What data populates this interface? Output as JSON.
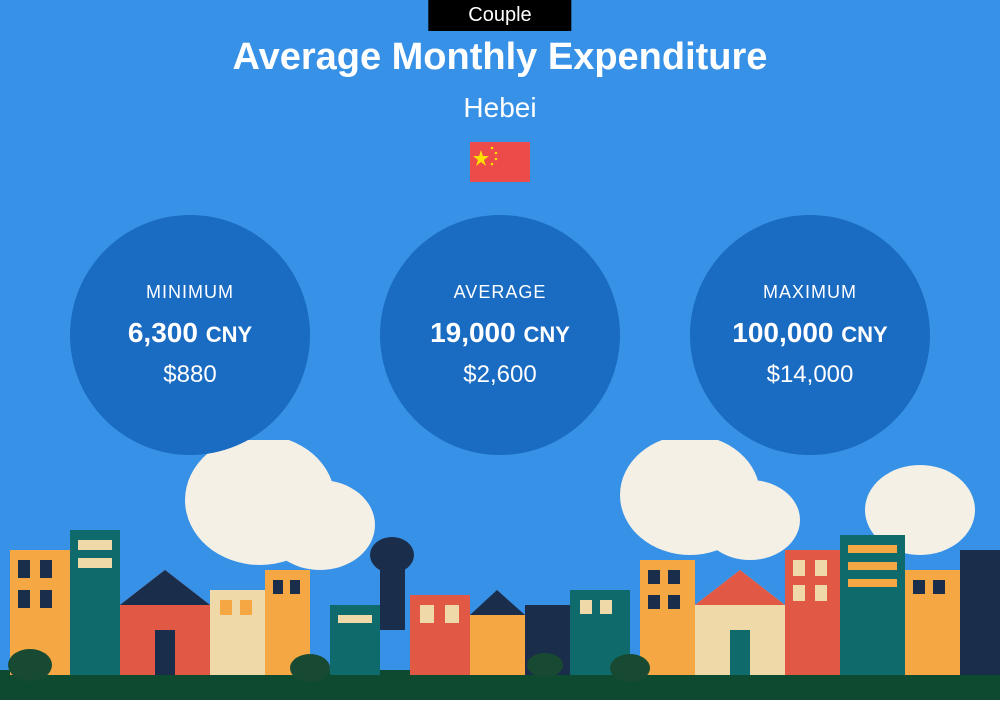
{
  "colors": {
    "background": "#3791e6",
    "tab_bg": "#000000",
    "circle_bg": "#1a6bc2",
    "flag_bg": "#ed4a4a",
    "flag_star": "#ffde00",
    "ground": "#0e4a2f",
    "cloud": "#f4f0e6",
    "orange": "#f4a742",
    "red": "#e15844",
    "teal": "#0f6b6b",
    "navy": "#1a2d4a",
    "cream": "#f0d9a8",
    "dkgreen": "#184a33"
  },
  "tab": {
    "label": "Couple"
  },
  "header": {
    "title": "Average Monthly Expenditure",
    "subtitle": "Hebei"
  },
  "stats": [
    {
      "label": "MINIMUM",
      "value": "6,300",
      "currency": "CNY",
      "usd": "$880"
    },
    {
      "label": "AVERAGE",
      "value": "19,000",
      "currency": "CNY",
      "usd": "$2,600"
    },
    {
      "label": "MAXIMUM",
      "value": "100,000",
      "currency": "CNY",
      "usd": "$14,000"
    }
  ]
}
